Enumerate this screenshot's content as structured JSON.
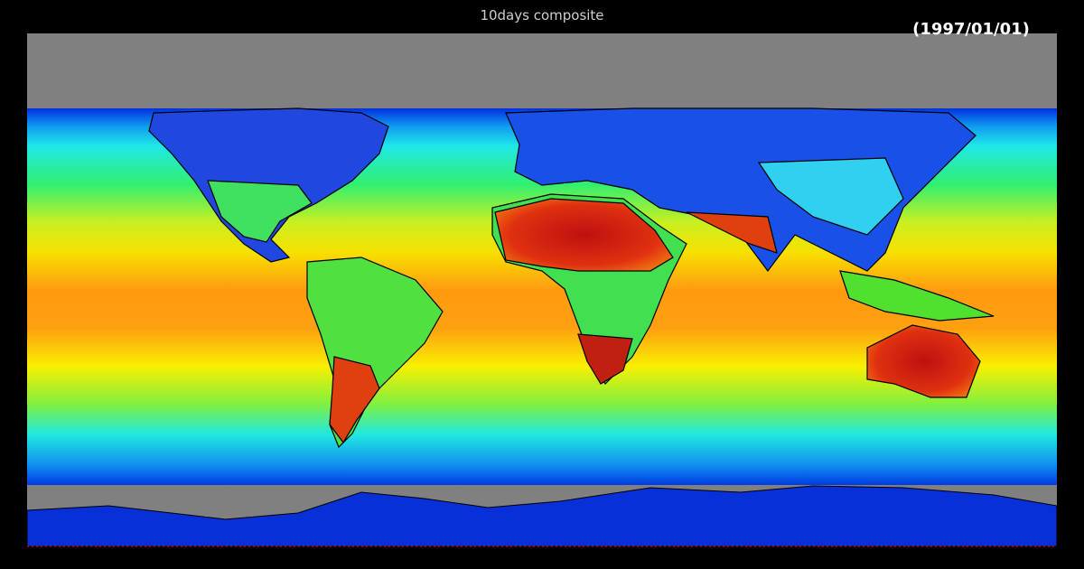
{
  "title": "10days composite",
  "date": "(1997/01/01)"
}
